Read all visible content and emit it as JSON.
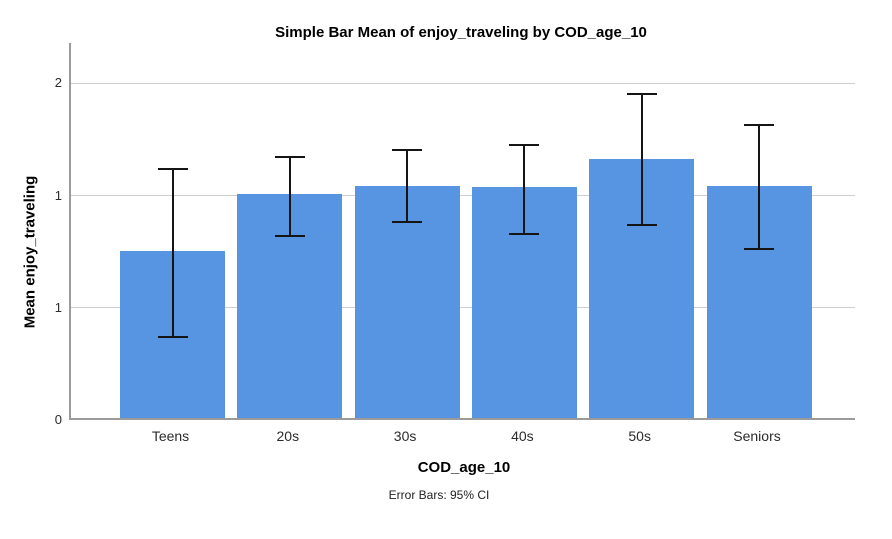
{
  "chart": {
    "title": "Simple Bar Mean of enjoy_traveling by COD_age_10",
    "y_axis_title": "Mean enjoy_traveling",
    "x_axis_title": "COD_age_10",
    "footnote": "Error Bars: 95% CI"
  },
  "chart_data": {
    "type": "bar",
    "title": "Simple Bar Mean of enjoy_traveling by COD_age_10",
    "xlabel": "COD_age_10",
    "ylabel": "Mean enjoy_traveling",
    "categories": [
      "Teens",
      "20s",
      "30s",
      "40s",
      "50s",
      "Seniors"
    ],
    "series": [
      {
        "name": "Mean enjoy_traveling",
        "values": [
          0.99,
          1.33,
          1.38,
          1.37,
          1.54,
          1.38
        ],
        "ci_lower": [
          0.49,
          1.09,
          1.17,
          1.1,
          1.15,
          1.01
        ],
        "ci_upper": [
          1.5,
          1.57,
          1.61,
          1.64,
          1.94,
          1.76
        ]
      }
    ],
    "error_bars": "95% CI",
    "ylim": [
      0,
      2.24
    ],
    "y_ticks": [
      {
        "value": 0,
        "label": "0"
      },
      {
        "value": 0.6667,
        "label": "1"
      },
      {
        "value": 1.3333,
        "label": "1"
      },
      {
        "value": 2,
        "label": "2"
      }
    ],
    "grid": "horizontal",
    "legend": "none",
    "colors": {
      "bar_fill": "#5794E2",
      "error_bar": "#151515",
      "gridline": "#CFCFCF",
      "axis_line": "#9B9B9B"
    }
  }
}
